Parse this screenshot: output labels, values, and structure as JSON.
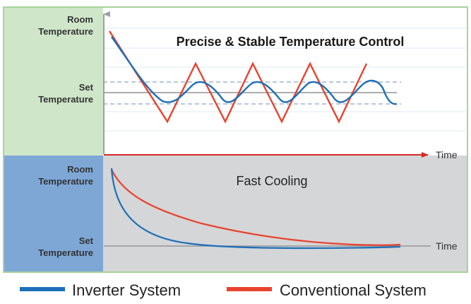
{
  "colors": {
    "inverter": "#1d6fb8",
    "conventional": "#e8432e",
    "panel_top_left": "#cfe6c9",
    "panel_bottom_left": "#7ea7d6",
    "panel_bottom_right": "#d4d6d8",
    "frame": "#a9d39a",
    "axis_arrow": "#d42a2a"
  },
  "top_panel": {
    "title": "Precise & Stable Temperature Control",
    "y_label_top": [
      "Room",
      "Temperature"
    ],
    "y_label_set": [
      "Set",
      "Temperature"
    ],
    "x_label": "Time"
  },
  "bottom_panel": {
    "title": "Fast Cooling",
    "y_label_top": [
      "Room",
      "Temperature"
    ],
    "y_label_set": [
      "Set",
      "Temperature"
    ],
    "x_label": "Time"
  },
  "legend": {
    "inverter_label": "Inverter System",
    "conventional_label": "Conventional System"
  }
}
